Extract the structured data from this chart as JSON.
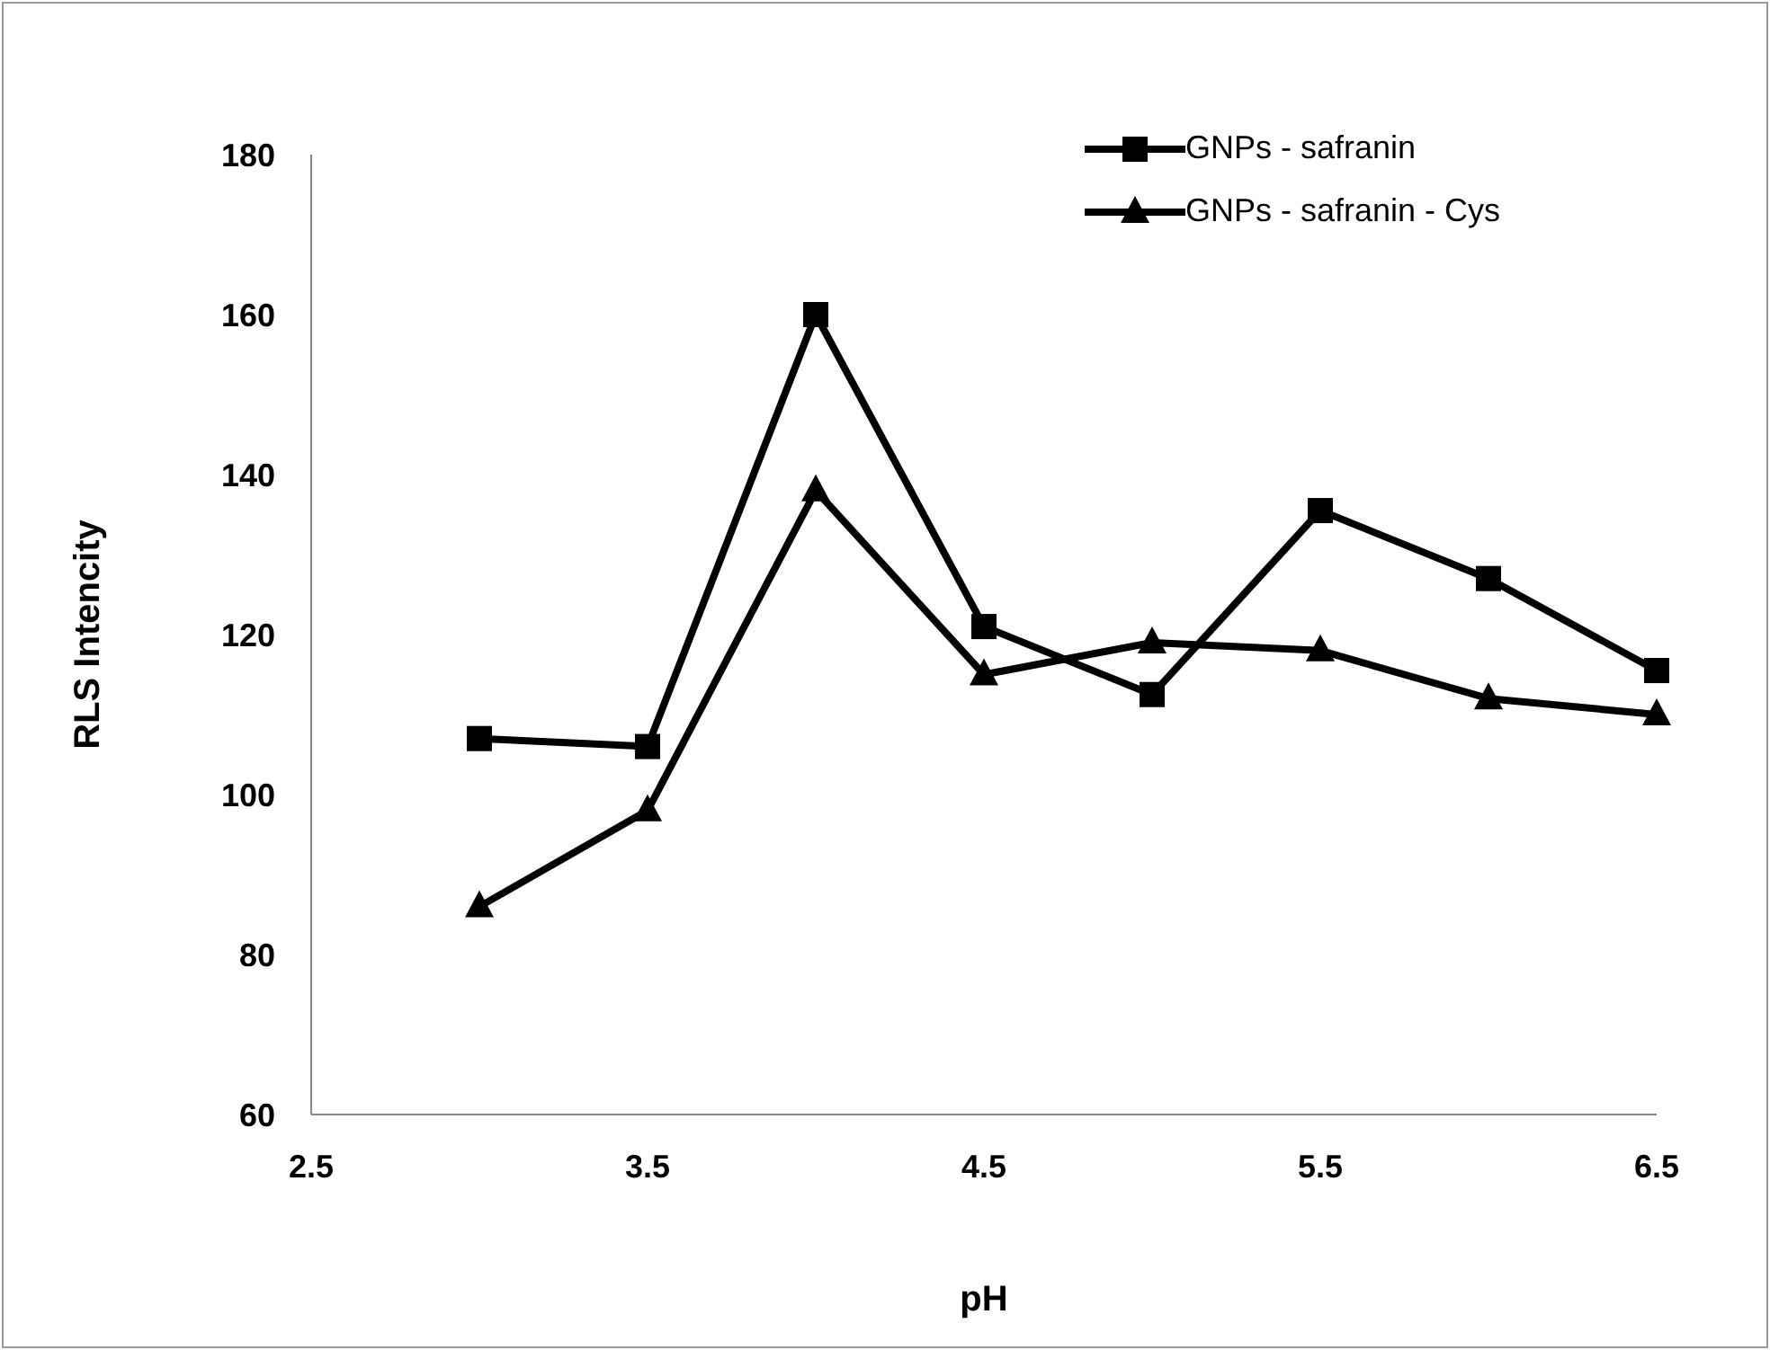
{
  "chart_data": {
    "type": "line",
    "xlabel": "pH",
    "ylabel": "RLS Intencity",
    "x": [
      3,
      3.5,
      4,
      4.5,
      5,
      5.5,
      6,
      6.5
    ],
    "series": [
      {
        "name": "GNPs - safranin",
        "color": "#000000",
        "marker": "square",
        "values": [
          107,
          106,
          160,
          121,
          112.5,
          135.5,
          127,
          115.5
        ]
      },
      {
        "name": "GNPs - safranin - Cys",
        "color": "#000000",
        "marker": "triangle",
        "values": [
          86,
          98,
          138,
          115,
          119,
          118,
          112,
          110
        ]
      }
    ],
    "xlim": [
      2.5,
      6.5
    ],
    "xticks": [
      2.5,
      3.5,
      4.5,
      5.5,
      6.5
    ],
    "ylim": [
      60,
      180
    ],
    "yticks": [
      60,
      80,
      100,
      120,
      140,
      160,
      180
    ],
    "grid": false,
    "legend": "top right",
    "line_style": "solid"
  }
}
